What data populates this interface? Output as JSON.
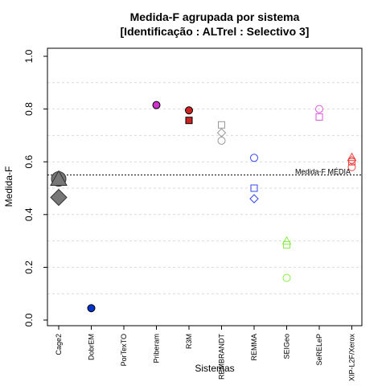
{
  "chart_data": {
    "type": "scatter",
    "title": "Medida-F agrupada por sistema",
    "subtitle": "[Identificação : ALTrel : Selectivo 3]",
    "xlabel": "Sistemas",
    "ylabel": "Medida-F",
    "ylim": [
      0.0,
      1.0
    ],
    "yticks": [
      "0.0",
      "0.2",
      "0.4",
      "0.6",
      "0.8",
      "1.0"
    ],
    "grid": true,
    "categories": [
      "Cage2",
      "DobrEM",
      "PorTexTO",
      "Priberam",
      "R3M",
      "REMBRANDT",
      "REMMA",
      "SEIGeo",
      "SeRELeP",
      "XIP-L2F/Xerox"
    ],
    "reference_line": {
      "value": 0.55,
      "label": "Medida-F MÉDIA"
    },
    "points": [
      {
        "system": "Cage2",
        "y": 0.535,
        "shape": "circle",
        "filled": true,
        "color": "#777777",
        "size": "large"
      },
      {
        "system": "Cage2",
        "y": 0.535,
        "shape": "triangle",
        "filled": true,
        "color": "#777777",
        "size": "large"
      },
      {
        "system": "Cage2",
        "y": 0.465,
        "shape": "diamond",
        "filled": true,
        "color": "#777777",
        "size": "large"
      },
      {
        "system": "DobrEM",
        "y": 0.045,
        "shape": "circle",
        "filled": true,
        "color": "#0033cc"
      },
      {
        "system": "Priberam",
        "y": 0.815,
        "shape": "circle",
        "filled": true,
        "color": "#cc33cc"
      },
      {
        "system": "R3M",
        "y": 0.795,
        "shape": "circle",
        "filled": true,
        "color": "#cc2222"
      },
      {
        "system": "R3M",
        "y": 0.757,
        "shape": "square",
        "filled": true,
        "color": "#cc2222"
      },
      {
        "system": "REMBRANDT",
        "y": 0.74,
        "shape": "square",
        "filled": false,
        "color": "#999999"
      },
      {
        "system": "REMBRANDT",
        "y": 0.71,
        "shape": "diamond",
        "filled": false,
        "color": "#999999"
      },
      {
        "system": "REMBRANDT",
        "y": 0.68,
        "shape": "circle",
        "filled": false,
        "color": "#999999"
      },
      {
        "system": "REMMA",
        "y": 0.615,
        "shape": "circle",
        "filled": false,
        "color": "#3344ee"
      },
      {
        "system": "REMMA",
        "y": 0.5,
        "shape": "square",
        "filled": false,
        "color": "#3344ee"
      },
      {
        "system": "REMMA",
        "y": 0.46,
        "shape": "diamond",
        "filled": false,
        "color": "#3344ee"
      },
      {
        "system": "SEIGeo",
        "y": 0.3,
        "shape": "triangle",
        "filled": false,
        "color": "#88ee44"
      },
      {
        "system": "SEIGeo",
        "y": 0.285,
        "shape": "square",
        "filled": false,
        "color": "#88ee44"
      },
      {
        "system": "SEIGeo",
        "y": 0.16,
        "shape": "circle",
        "filled": false,
        "color": "#88ee44"
      },
      {
        "system": "SeRELeP",
        "y": 0.8,
        "shape": "circle",
        "filled": false,
        "color": "#dd55dd"
      },
      {
        "system": "SeRELeP",
        "y": 0.77,
        "shape": "square",
        "filled": false,
        "color": "#dd55dd"
      },
      {
        "system": "XIP-L2F/Xerox",
        "y": 0.617,
        "shape": "triangle",
        "filled": false,
        "color": "#ee4444"
      },
      {
        "system": "XIP-L2F/Xerox",
        "y": 0.6,
        "shape": "square",
        "filled": false,
        "color": "#ee4444"
      },
      {
        "system": "XIP-L2F/Xerox",
        "y": 0.58,
        "shape": "circle",
        "filled": false,
        "color": "#ee4444"
      },
      {
        "system": "XIP-L2F/Xerox",
        "y": 0.605,
        "shape": "diamond",
        "filled": false,
        "color": "#ee4444"
      }
    ]
  }
}
